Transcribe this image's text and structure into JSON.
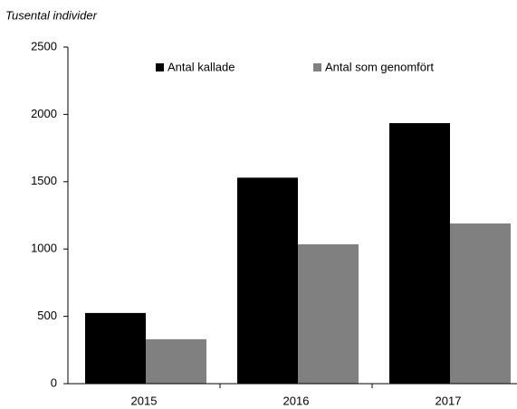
{
  "chart_data": {
    "type": "bar",
    "y_label": "Tusental individer",
    "categories": [
      "2015",
      "2016",
      "2017"
    ],
    "series": [
      {
        "name": "Antal kallade",
        "color": "#000000",
        "values": [
          525,
          1530,
          1935
        ]
      },
      {
        "name": "Antal som genomfört",
        "color": "#808080",
        "values": [
          330,
          1035,
          1190
        ]
      }
    ],
    "ylim": [
      0,
      2500
    ],
    "yticks": [
      0,
      500,
      1000,
      1500,
      2000,
      2500
    ],
    "grid": false,
    "legend": "top"
  }
}
